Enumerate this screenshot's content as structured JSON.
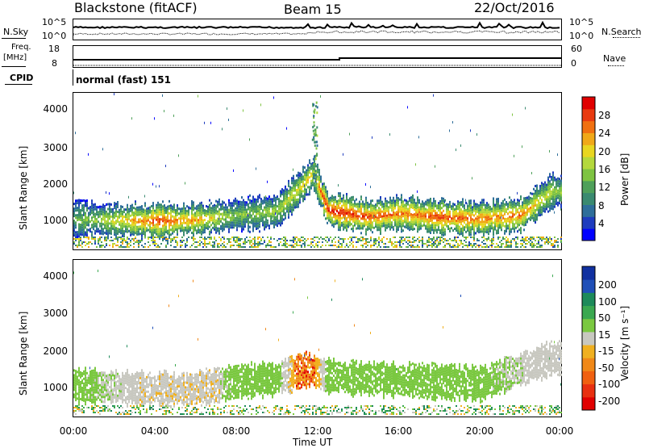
{
  "header": {
    "station": "Blackstone (fitACF)",
    "beam": "Beam 15",
    "date": "22/Oct/2016"
  },
  "top_panels": {
    "nsky_label": "N.Sky",
    "nsky_ticks": [
      "10^5",
      "10^0"
    ],
    "nsearch_label": "N.Search",
    "nsearch_ticks": [
      "10^5",
      "10^0"
    ],
    "freq_label_line1": "Freq.",
    "freq_label_line2": "[MHz]",
    "freq_ticks": [
      "18",
      "8"
    ],
    "nave_label": "Nave",
    "nave_ticks": [
      "60",
      "0"
    ],
    "cpid_label": "CPID",
    "cpid_text": "normal (fast) 151"
  },
  "power_panel": {
    "ylabel": "Slant Range [km]",
    "yticks": [
      "4000",
      "3000",
      "2000",
      "1000"
    ],
    "colorbar_label": "Power [dB]",
    "colorbar_ticks": [
      "28",
      "24",
      "20",
      "16",
      "12",
      "8",
      "4"
    ],
    "colors": [
      "#0000ff",
      "#1e3cbe",
      "#2e6e9a",
      "#3a8a70",
      "#4fa05a",
      "#7ec341",
      "#b4d83c",
      "#e8d620",
      "#f0a818",
      "#f07010",
      "#e83a10",
      "#e00000"
    ]
  },
  "velocity_panel": {
    "ylabel": "Slant Range [km]",
    "yticks": [
      "4000",
      "3000",
      "2000",
      "1000"
    ],
    "colorbar_label": "Velocity [m s⁻¹]",
    "colorbar_ticks": [
      "200",
      "100",
      "50",
      "15",
      "-15",
      "-50",
      "-100",
      "-200"
    ],
    "colors": [
      "#1030a0",
      "#2050b8",
      "#1d8a5a",
      "#3aa850",
      "#7ac840",
      "#c8c8c0",
      "#f0b020",
      "#f08818",
      "#f06010",
      "#e83010",
      "#e00000"
    ]
  },
  "x_axis": {
    "label": "Time UT",
    "ticks": [
      "00:00",
      "04:00",
      "08:00",
      "12:00",
      "16:00",
      "20:00",
      "00:00"
    ]
  },
  "chart_data": {
    "type": "heatmap",
    "title": "Blackstone (fitACF)",
    "subtitle": "Beam 15",
    "date": "22/Oct/2016",
    "xlabel": "Time UT",
    "x_range": [
      "00:00",
      "24:00"
    ],
    "panels": [
      {
        "name": "Power",
        "unit": "dB",
        "ylabel": "Slant Range [km]",
        "ylim": [
          180,
          4500
        ],
        "clim": [
          0,
          30
        ],
        "colorbar_ticks": [
          4,
          8,
          12,
          16,
          20,
          24,
          28
        ],
        "echo_band": [
          {
            "t": 0.0,
            "range_km": 1050,
            "power_db": 12
          },
          {
            "t": 2.0,
            "range_km": 1000,
            "power_db": 18
          },
          {
            "t": 4.0,
            "range_km": 1000,
            "power_db": 26
          },
          {
            "t": 6.0,
            "range_km": 1020,
            "power_db": 22
          },
          {
            "t": 8.0,
            "range_km": 1150,
            "power_db": 14
          },
          {
            "t": 10.0,
            "range_km": 1250,
            "power_db": 16
          },
          {
            "t": 11.8,
            "range_km": 2300,
            "power_db": 20
          },
          {
            "t": 12.5,
            "range_km": 1300,
            "power_db": 28
          },
          {
            "t": 14.5,
            "range_km": 1100,
            "power_db": 26
          },
          {
            "t": 16.0,
            "range_km": 1200,
            "power_db": 24
          },
          {
            "t": 18.0,
            "range_km": 1100,
            "power_db": 26
          },
          {
            "t": 20.0,
            "range_km": 1050,
            "power_db": 24
          },
          {
            "t": 22.0,
            "range_km": 1150,
            "power_db": 24
          },
          {
            "t": 23.5,
            "range_km": 1800,
            "power_db": 16
          }
        ]
      },
      {
        "name": "Velocity",
        "unit": "m s^-1",
        "ylabel": "Slant Range [km]",
        "ylim": [
          180,
          4500
        ],
        "clim": [
          -250,
          250
        ],
        "colorbar_ticks": [
          200,
          100,
          50,
          15,
          -15,
          -50,
          -100,
          -200
        ],
        "echo_band": [
          {
            "t": 0.0,
            "range_km": 1050,
            "velocity": 0
          },
          {
            "t": 2.0,
            "range_km": 1000,
            "velocity": -20
          },
          {
            "t": 4.0,
            "range_km": 950,
            "velocity": -40
          },
          {
            "t": 6.0,
            "range_km": 950,
            "velocity": -40
          },
          {
            "t": 8.0,
            "range_km": 1150,
            "velocity": 0
          },
          {
            "t": 10.0,
            "range_km": 1250,
            "velocity": 0
          },
          {
            "t": 11.5,
            "range_km": 1500,
            "velocity": -120
          },
          {
            "t": 12.5,
            "range_km": 1300,
            "velocity": 0
          },
          {
            "t": 16.0,
            "range_km": 1200,
            "velocity": 0
          },
          {
            "t": 20.0,
            "range_km": 1100,
            "velocity": 0
          },
          {
            "t": 23.5,
            "range_km": 1800,
            "velocity": -40
          }
        ]
      }
    ]
  }
}
